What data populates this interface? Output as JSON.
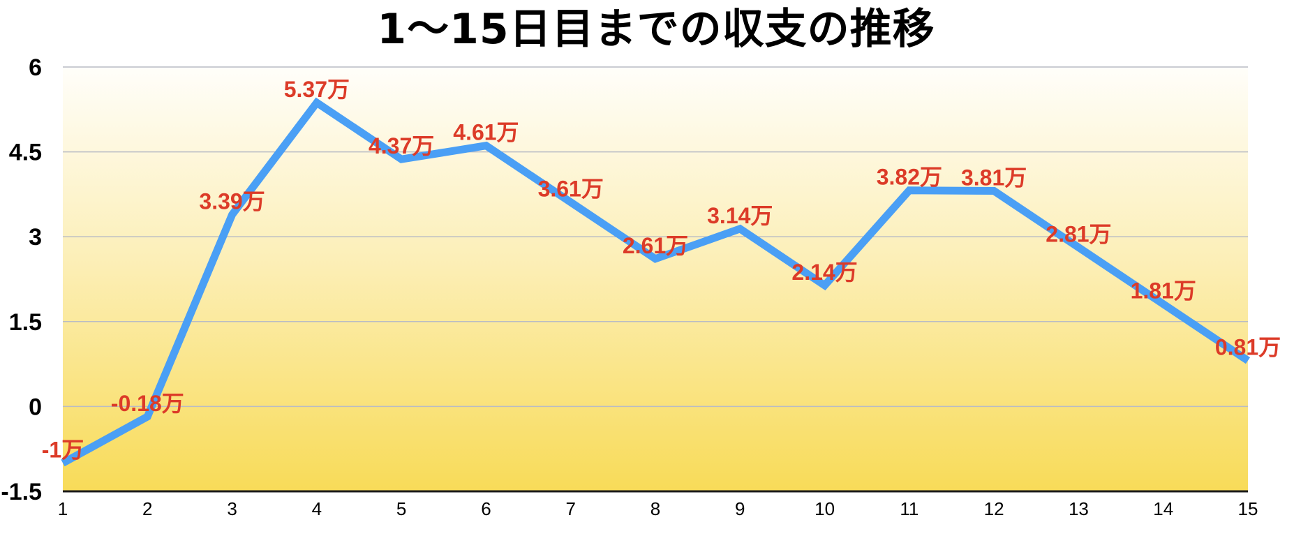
{
  "chart_data": {
    "type": "line",
    "title": "1〜15日目までの収支の推移",
    "xlabel": "",
    "ylabel": "",
    "categories": [
      "1",
      "2",
      "3",
      "4",
      "5",
      "6",
      "7",
      "8",
      "9",
      "10",
      "11",
      "12",
      "13",
      "14",
      "15"
    ],
    "series": [
      {
        "name": "収支",
        "values": [
          -1,
          -0.18,
          3.39,
          5.37,
          4.37,
          4.61,
          3.61,
          2.61,
          3.14,
          2.14,
          3.82,
          3.81,
          2.81,
          1.81,
          0.81
        ],
        "data_labels": [
          "-1万",
          "-0.18万",
          "3.39万",
          "5.37万",
          "4.37万",
          "4.61万",
          "3.61万",
          "2.61万",
          "3.14万",
          "2.14万",
          "3.82万",
          "3.81万",
          "2.81万",
          "1.81万",
          "0.81万"
        ],
        "color": "#4a9ff5"
      }
    ],
    "ylim": [
      -1.5,
      6
    ],
    "yticks": [
      "6",
      "4.5",
      "3",
      "1.5",
      "0",
      "-1.5"
    ],
    "ytick_values": [
      6,
      4.5,
      3,
      1.5,
      0,
      -1.5
    ],
    "grid": true,
    "legend": "none",
    "colors": {
      "line": "#4a9ff5",
      "label": "#dc3b28",
      "grid": "#b9bcc4",
      "background_top": "#fffefa",
      "background_bottom": "#f8db58",
      "axis": "#1a1a1a"
    }
  }
}
